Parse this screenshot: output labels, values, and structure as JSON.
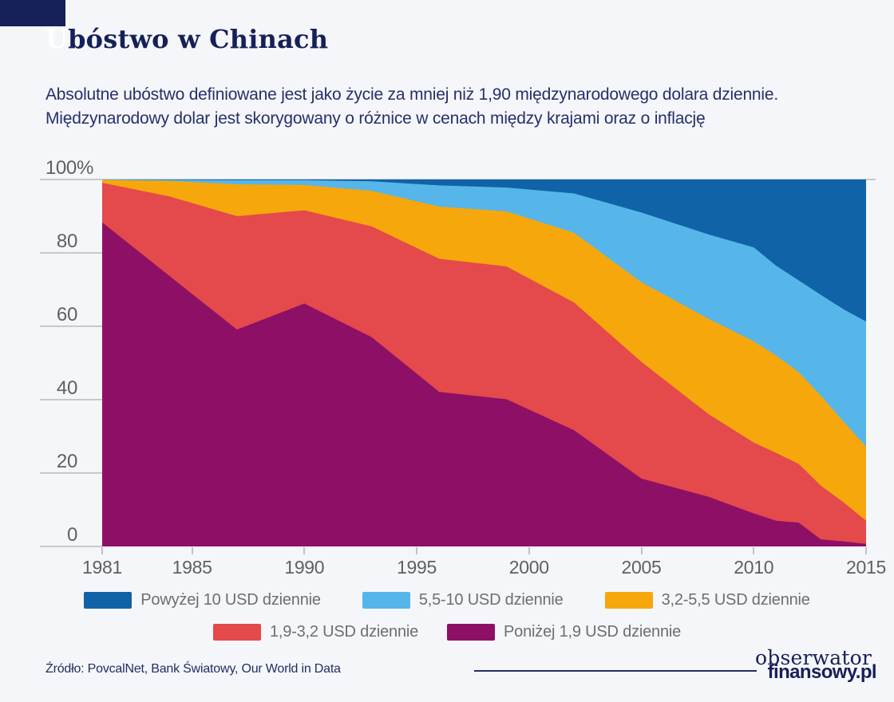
{
  "header": {
    "title_initial": "U",
    "title_rest": "bóstwo w Chinach",
    "subtitle_line1": "Absolutne ubóstwo definiowane jest jako życie za mniej niż 1,90 międzynarodowego dolara dziennie.",
    "subtitle_line2": "Międzynarodowy dolar jest skorygowany o różnice w cenach między krajami oraz o inflację"
  },
  "chart_data": {
    "type": "area",
    "stacked": true,
    "title": "Ubóstwo w Chinach",
    "unit": "% populacji",
    "xlim": [
      1981,
      2015
    ],
    "ylim": [
      0,
      100
    ],
    "grid": "top-line-only",
    "legend_position": "bottom",
    "x": [
      1981,
      1984,
      1987,
      1990,
      1993,
      1996,
      1999,
      2002,
      2005,
      2008,
      2010,
      2011,
      2012,
      2013,
      2014,
      2015
    ],
    "series": [
      {
        "name": "Poniżej 1,9 USD dziennie",
        "color": "#8e1066",
        "values": [
          88.3,
          73.7,
          59.1,
          66.2,
          57.0,
          42.1,
          40.1,
          31.7,
          18.5,
          13.5,
          9.0,
          7.0,
          6.5,
          1.9,
          1.4,
          0.7
        ]
      },
      {
        "name": "1,9-3,2 USD dziennie",
        "color": "#e4494b",
        "values": [
          10.8,
          21.7,
          30.9,
          25.4,
          30.2,
          36.3,
          36.2,
          34.8,
          31.8,
          22.5,
          19.3,
          18.5,
          16.0,
          14.6,
          10.6,
          6.3
        ]
      },
      {
        "name": "3,2-5,5 USD dziennie",
        "color": "#f6a70c",
        "values": [
          0.8,
          4.2,
          8.7,
          6.9,
          9.7,
          14.2,
          15.0,
          19.0,
          21.7,
          26.0,
          27.6,
          26.5,
          25.0,
          24.5,
          22.0,
          20.2
        ]
      },
      {
        "name": "5,5-10 USD dziennie",
        "color": "#56b6e9",
        "values": [
          0.1,
          0.3,
          1.1,
          1.3,
          2.6,
          5.8,
          6.5,
          10.7,
          19.0,
          23.0,
          25.6,
          24.5,
          25.0,
          27.5,
          30.6,
          34.1
        ]
      },
      {
        "name": "Powyżej 10 USD dziennie",
        "color": "#0f63a6",
        "values": [
          0.0,
          0.1,
          0.2,
          0.2,
          0.5,
          1.6,
          2.2,
          3.8,
          9.0,
          15.0,
          18.5,
          23.5,
          27.5,
          31.5,
          35.4,
          38.7
        ]
      }
    ],
    "y_axis": [
      {
        "label": "100%",
        "value": 100
      },
      {
        "label": "80",
        "value": 80
      },
      {
        "label": "60",
        "value": 60
      },
      {
        "label": "40",
        "value": 40
      },
      {
        "label": "20",
        "value": 20
      },
      {
        "label": "0",
        "value": 0
      }
    ],
    "x_axis": [
      {
        "label": "1981",
        "year": 1981
      },
      {
        "label": "1985",
        "year": 1985
      },
      {
        "label": "1990",
        "year": 1990
      },
      {
        "label": "1995",
        "year": 1995
      },
      {
        "label": "2000",
        "year": 2000
      },
      {
        "label": "2005",
        "year": 2005
      },
      {
        "label": "2010",
        "year": 2010
      },
      {
        "label": "2015",
        "year": 2015
      }
    ],
    "legend_rows": [
      [
        4,
        3,
        2
      ],
      [
        1,
        0
      ]
    ]
  },
  "footer": {
    "source": "Źródło: PovcalNet, Bank Światowy, Our World in Data",
    "logo_line1": "obserwator",
    "logo_line2": "finansowy.pl"
  }
}
